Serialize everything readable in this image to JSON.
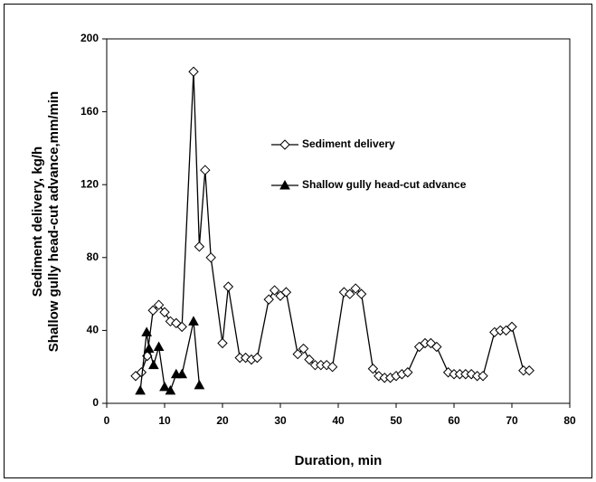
{
  "chart_data": {
    "type": "line",
    "xlabel": "Duration, min",
    "ylabel": [
      "Sediment delivery, kg/h",
      "Shallow gully head-cut advance,mm/min"
    ],
    "xlim": [
      0,
      80
    ],
    "xticks": [
      0,
      10,
      20,
      30,
      40,
      50,
      60,
      70,
      80
    ],
    "ylim": [
      0,
      200
    ],
    "yticks": [
      0,
      40,
      80,
      120,
      160,
      200
    ],
    "series": [
      {
        "name": "Sediment delivery",
        "color": "#000000",
        "marker": "diamond",
        "x": [
          5,
          6,
          7,
          8,
          9,
          10,
          11,
          12,
          13,
          15,
          16,
          17,
          18,
          20,
          21,
          23,
          24,
          25,
          26,
          28,
          29,
          30,
          31,
          33,
          34,
          35,
          36,
          37,
          38,
          39,
          41,
          42,
          43,
          44,
          46,
          47,
          48,
          49,
          50,
          51,
          52,
          54,
          55,
          56,
          57,
          59,
          60,
          61,
          62,
          63,
          64,
          65,
          67,
          68,
          69,
          70,
          72,
          73
        ],
        "values": [
          15,
          17,
          26,
          51,
          54,
          50,
          45,
          44,
          42,
          182,
          86,
          128,
          80,
          33,
          64,
          25,
          25,
          24,
          25,
          57,
          62,
          59,
          61,
          27,
          30,
          24,
          21,
          21,
          21,
          20,
          61,
          60,
          63,
          60,
          19,
          15,
          14,
          14,
          15,
          16,
          17,
          31,
          33,
          33,
          31,
          17,
          16,
          16,
          16,
          16,
          15,
          15,
          39,
          40,
          40,
          42,
          18,
          18
        ]
      },
      {
        "name": "Shallow gully head-cut advance",
        "color": "#000000",
        "marker": "triangle",
        "x": [
          5.8,
          6.9,
          7.3,
          8.1,
          9,
          10,
          11,
          12,
          13,
          15,
          16
        ],
        "values": [
          7,
          39,
          30,
          21,
          31,
          9,
          7,
          16,
          16,
          45,
          10
        ]
      }
    ]
  }
}
